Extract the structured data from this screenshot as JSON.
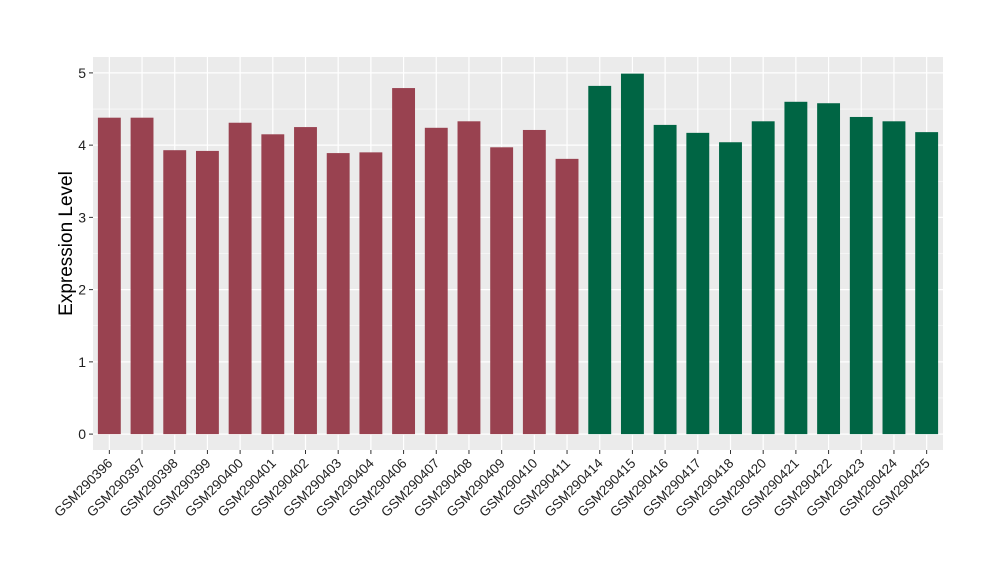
{
  "chart_data": {
    "type": "bar",
    "title": "",
    "xlabel": "",
    "ylabel": "Expression Level",
    "ylim": [
      -0.22,
      5.22
    ],
    "yticks": [
      0,
      1,
      2,
      3,
      4,
      5
    ],
    "grid": true,
    "legend": "none",
    "categories": [
      "GSM290396",
      "GSM290397",
      "GSM290398",
      "GSM290399",
      "GSM290400",
      "GSM290401",
      "GSM290402",
      "GSM290403",
      "GSM290404",
      "GSM290406",
      "GSM290407",
      "GSM290408",
      "GSM290409",
      "GSM290410",
      "GSM290411",
      "GSM290414",
      "GSM290415",
      "GSM290416",
      "GSM290417",
      "GSM290418",
      "GSM290420",
      "GSM290421",
      "GSM290422",
      "GSM290423",
      "GSM290424",
      "GSM290425"
    ],
    "values": [
      4.38,
      4.38,
      3.93,
      3.92,
      4.31,
      4.15,
      4.25,
      3.89,
      3.9,
      4.79,
      4.24,
      4.33,
      3.97,
      4.21,
      3.81,
      4.82,
      4.99,
      4.28,
      4.17,
      4.04,
      4.33,
      4.6,
      4.58,
      4.39,
      4.33,
      4.18
    ],
    "groups": [
      0,
      0,
      0,
      0,
      0,
      0,
      0,
      0,
      0,
      0,
      0,
      0,
      0,
      0,
      0,
      1,
      1,
      1,
      1,
      1,
      1,
      1,
      1,
      1,
      1,
      1
    ],
    "group_colors": [
      "#994250",
      "#006544"
    ]
  }
}
